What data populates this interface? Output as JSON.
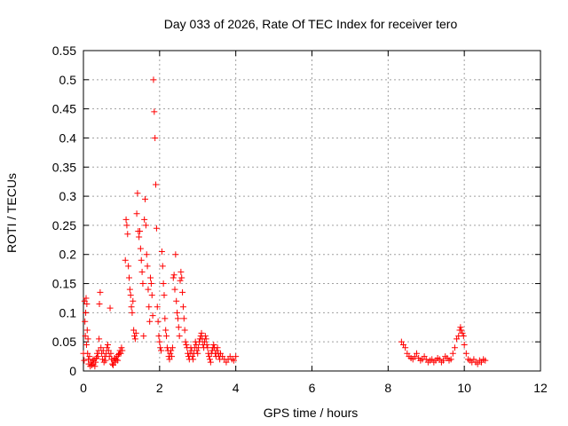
{
  "chart_data": {
    "type": "scatter",
    "title": "Day 033 of 2026, Rate Of TEC Index for receiver tero",
    "xlabel": "GPS time / hours",
    "ylabel": "ROTI / TECUs",
    "xlim": [
      0,
      12
    ],
    "ylim": [
      0,
      0.55
    ],
    "xticks": [
      0,
      2,
      4,
      6,
      8,
      10,
      12
    ],
    "yticks": [
      0,
      0.05,
      0.1,
      0.15,
      0.2,
      0.25,
      0.3,
      0.35,
      0.4,
      0.45,
      0.5,
      0.55
    ],
    "grid": true,
    "marker": "+",
    "color": "#ff0000",
    "series": [
      {
        "points": [
          [
            0.0,
            0.03
          ],
          [
            0.02,
            0.018
          ],
          [
            0.03,
            0.12
          ],
          [
            0.04,
            0.085
          ],
          [
            0.05,
            0.06
          ],
          [
            0.06,
            0.1
          ],
          [
            0.07,
            0.125
          ],
          [
            0.08,
            0.045
          ],
          [
            0.09,
            0.115
          ],
          [
            0.1,
            0.07
          ],
          [
            0.11,
            0.03
          ],
          [
            0.12,
            0.055
          ],
          [
            0.13,
            0.02
          ],
          [
            0.14,
            0.012
          ],
          [
            0.16,
            0.025
          ],
          [
            0.18,
            0.008
          ],
          [
            0.2,
            0.015
          ],
          [
            0.22,
            0.01
          ],
          [
            0.24,
            0.018
          ],
          [
            0.26,
            0.012
          ],
          [
            0.28,
            0.02
          ],
          [
            0.3,
            0.008
          ],
          [
            0.32,
            0.015
          ],
          [
            0.34,
            0.022
          ],
          [
            0.36,
            0.03
          ],
          [
            0.38,
            0.025
          ],
          [
            0.4,
            0.035
          ],
          [
            0.41,
            0.055
          ],
          [
            0.42,
            0.115
          ],
          [
            0.44,
            0.135
          ],
          [
            0.46,
            0.04
          ],
          [
            0.48,
            0.03
          ],
          [
            0.5,
            0.02
          ],
          [
            0.52,
            0.035
          ],
          [
            0.54,
            0.015
          ],
          [
            0.56,
            0.025
          ],
          [
            0.58,
            0.018
          ],
          [
            0.6,
            0.03
          ],
          [
            0.62,
            0.04
          ],
          [
            0.64,
            0.045
          ],
          [
            0.66,
            0.035
          ],
          [
            0.68,
            0.025
          ],
          [
            0.7,
            0.108
          ],
          [
            0.72,
            0.03
          ],
          [
            0.74,
            0.02
          ],
          [
            0.76,
            0.012
          ],
          [
            0.78,
            0.01
          ],
          [
            0.8,
            0.018
          ],
          [
            0.82,
            0.022
          ],
          [
            0.84,
            0.015
          ],
          [
            0.86,
            0.02
          ],
          [
            0.88,
            0.025
          ],
          [
            0.9,
            0.018
          ],
          [
            0.92,
            0.028
          ],
          [
            0.94,
            0.03
          ],
          [
            0.96,
            0.035
          ],
          [
            0.98,
            0.03
          ],
          [
            1.0,
            0.04
          ],
          [
            1.02,
            0.035
          ],
          [
            1.1,
            0.19
          ],
          [
            1.12,
            0.26
          ],
          [
            1.14,
            0.25
          ],
          [
            1.16,
            0.235
          ],
          [
            1.18,
            0.18
          ],
          [
            1.2,
            0.16
          ],
          [
            1.22,
            0.14
          ],
          [
            1.24,
            0.13
          ],
          [
            1.26,
            0.11
          ],
          [
            1.28,
            0.1
          ],
          [
            1.3,
            0.12
          ],
          [
            1.32,
            0.07
          ],
          [
            1.34,
            0.06
          ],
          [
            1.36,
            0.055
          ],
          [
            1.38,
            0.065
          ],
          [
            1.4,
            0.27
          ],
          [
            1.42,
            0.305
          ],
          [
            1.44,
            0.24
          ],
          [
            1.46,
            0.23
          ],
          [
            1.48,
            0.24
          ],
          [
            1.5,
            0.21
          ],
          [
            1.52,
            0.19
          ],
          [
            1.54,
            0.17
          ],
          [
            1.56,
            0.15
          ],
          [
            1.58,
            0.06
          ],
          [
            1.6,
            0.26
          ],
          [
            1.62,
            0.295
          ],
          [
            1.64,
            0.25
          ],
          [
            1.66,
            0.2
          ],
          [
            1.68,
            0.18
          ],
          [
            1.7,
            0.14
          ],
          [
            1.72,
            0.11
          ],
          [
            1.74,
            0.085
          ],
          [
            1.76,
            0.16
          ],
          [
            1.78,
            0.15
          ],
          [
            1.8,
            0.13
          ],
          [
            1.82,
            0.095
          ],
          [
            1.84,
            0.5
          ],
          [
            1.86,
            0.445
          ],
          [
            1.88,
            0.4
          ],
          [
            1.9,
            0.32
          ],
          [
            1.92,
            0.245
          ],
          [
            1.94,
            0.11
          ],
          [
            1.96,
            0.085
          ],
          [
            1.98,
            0.06
          ],
          [
            2.0,
            0.05
          ],
          [
            2.02,
            0.04
          ],
          [
            2.04,
            0.035
          ],
          [
            2.06,
            0.205
          ],
          [
            2.08,
            0.18
          ],
          [
            2.1,
            0.15
          ],
          [
            2.12,
            0.13
          ],
          [
            2.14,
            0.09
          ],
          [
            2.16,
            0.07
          ],
          [
            2.18,
            0.06
          ],
          [
            2.2,
            0.04
          ],
          [
            2.22,
            0.035
          ],
          [
            2.24,
            0.025
          ],
          [
            2.26,
            0.02
          ],
          [
            2.28,
            0.03
          ],
          [
            2.3,
            0.035
          ],
          [
            2.32,
            0.025
          ],
          [
            2.34,
            0.04
          ],
          [
            2.36,
            0.16
          ],
          [
            2.38,
            0.165
          ],
          [
            2.4,
            0.14
          ],
          [
            2.42,
            0.2
          ],
          [
            2.44,
            0.12
          ],
          [
            2.46,
            0.1
          ],
          [
            2.48,
            0.09
          ],
          [
            2.5,
            0.075
          ],
          [
            2.52,
            0.06
          ],
          [
            2.54,
            0.155
          ],
          [
            2.56,
            0.17
          ],
          [
            2.58,
            0.16
          ],
          [
            2.6,
            0.135
          ],
          [
            2.62,
            0.11
          ],
          [
            2.64,
            0.09
          ],
          [
            2.66,
            0.07
          ],
          [
            2.68,
            0.05
          ],
          [
            2.7,
            0.045
          ],
          [
            2.72,
            0.04
          ],
          [
            2.74,
            0.03
          ],
          [
            2.76,
            0.025
          ],
          [
            2.78,
            0.02
          ],
          [
            2.8,
            0.03
          ],
          [
            2.82,
            0.04
          ],
          [
            2.84,
            0.035
          ],
          [
            2.86,
            0.025
          ],
          [
            2.88,
            0.02
          ],
          [
            2.9,
            0.03
          ],
          [
            2.92,
            0.04
          ],
          [
            2.94,
            0.05
          ],
          [
            2.96,
            0.045
          ],
          [
            2.98,
            0.035
          ],
          [
            3.0,
            0.03
          ],
          [
            3.02,
            0.04
          ],
          [
            3.04,
            0.05
          ],
          [
            3.06,
            0.055
          ],
          [
            3.08,
            0.06
          ],
          [
            3.1,
            0.065
          ],
          [
            3.12,
            0.055
          ],
          [
            3.14,
            0.045
          ],
          [
            3.16,
            0.04
          ],
          [
            3.18,
            0.05
          ],
          [
            3.2,
            0.06
          ],
          [
            3.22,
            0.055
          ],
          [
            3.24,
            0.045
          ],
          [
            3.26,
            0.04
          ],
          [
            3.28,
            0.03
          ],
          [
            3.3,
            0.025
          ],
          [
            3.32,
            0.02
          ],
          [
            3.34,
            0.015
          ],
          [
            3.36,
            0.03
          ],
          [
            3.38,
            0.035
          ],
          [
            3.4,
            0.04
          ],
          [
            3.42,
            0.045
          ],
          [
            3.44,
            0.04
          ],
          [
            3.46,
            0.03
          ],
          [
            3.48,
            0.025
          ],
          [
            3.5,
            0.035
          ],
          [
            3.52,
            0.04
          ],
          [
            3.54,
            0.03
          ],
          [
            3.56,
            0.025
          ],
          [
            3.58,
            0.02
          ],
          [
            3.6,
            0.03
          ],
          [
            3.65,
            0.025
          ],
          [
            3.7,
            0.02
          ],
          [
            3.75,
            0.015
          ],
          [
            3.8,
            0.02
          ],
          [
            3.85,
            0.025
          ],
          [
            3.9,
            0.02
          ],
          [
            3.95,
            0.018
          ],
          [
            4.0,
            0.025
          ],
          [
            8.35,
            0.05
          ],
          [
            8.4,
            0.045
          ],
          [
            8.45,
            0.04
          ],
          [
            8.5,
            0.03
          ],
          [
            8.55,
            0.025
          ],
          [
            8.6,
            0.022
          ],
          [
            8.65,
            0.02
          ],
          [
            8.7,
            0.025
          ],
          [
            8.75,
            0.03
          ],
          [
            8.8,
            0.022
          ],
          [
            8.85,
            0.018
          ],
          [
            8.9,
            0.02
          ],
          [
            8.95,
            0.025
          ],
          [
            9.0,
            0.02
          ],
          [
            9.05,
            0.015
          ],
          [
            9.1,
            0.018
          ],
          [
            9.15,
            0.02
          ],
          [
            9.2,
            0.015
          ],
          [
            9.25,
            0.018
          ],
          [
            9.3,
            0.022
          ],
          [
            9.35,
            0.02
          ],
          [
            9.4,
            0.015
          ],
          [
            9.45,
            0.018
          ],
          [
            9.5,
            0.025
          ],
          [
            9.55,
            0.022
          ],
          [
            9.6,
            0.018
          ],
          [
            9.65,
            0.02
          ],
          [
            9.7,
            0.03
          ],
          [
            9.75,
            0.04
          ],
          [
            9.8,
            0.055
          ],
          [
            9.85,
            0.06
          ],
          [
            9.88,
            0.07
          ],
          [
            9.9,
            0.075
          ],
          [
            9.92,
            0.07
          ],
          [
            9.95,
            0.065
          ],
          [
            9.98,
            0.06
          ],
          [
            10.0,
            0.045
          ],
          [
            10.05,
            0.03
          ],
          [
            10.1,
            0.02
          ],
          [
            10.15,
            0.018
          ],
          [
            10.2,
            0.015
          ],
          [
            10.25,
            0.02
          ],
          [
            10.3,
            0.015
          ],
          [
            10.35,
            0.012
          ],
          [
            10.4,
            0.018
          ],
          [
            10.45,
            0.015
          ],
          [
            10.5,
            0.02
          ],
          [
            10.55,
            0.018
          ]
        ]
      }
    ]
  }
}
